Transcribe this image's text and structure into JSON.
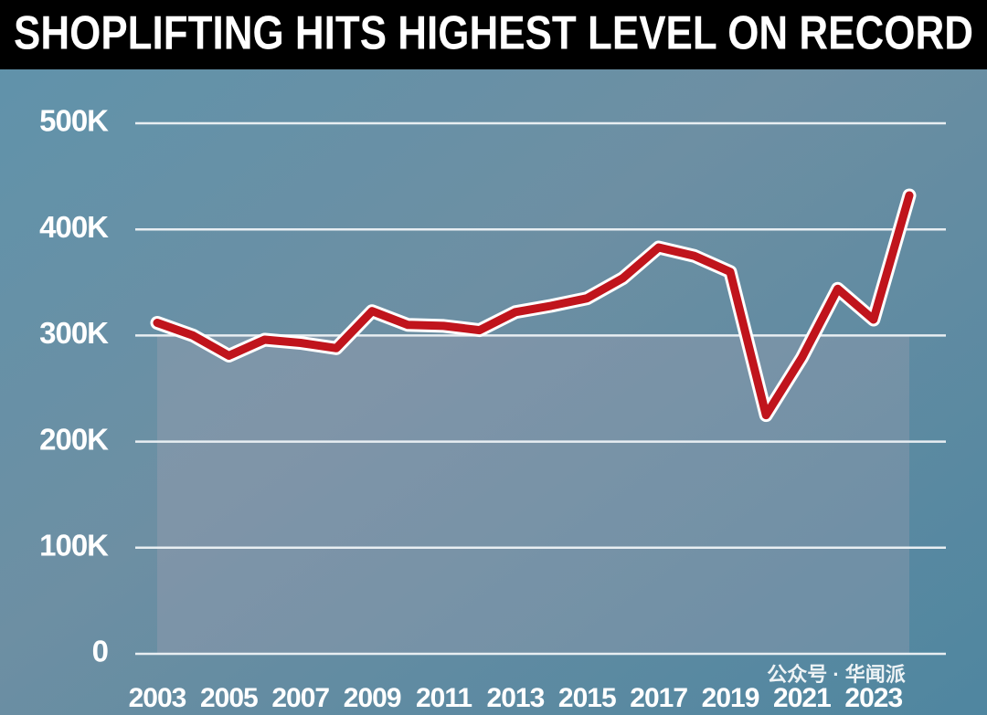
{
  "chart_data": {
    "type": "line",
    "title": "SHOPLIFTING HITS HIGHEST LEVEL ON RECORD",
    "categories": [
      "2003",
      null,
      "2005",
      null,
      "2007",
      null,
      "2009",
      null,
      "2011",
      null,
      "2013",
      null,
      "2015",
      null,
      "2017",
      null,
      "2019",
      null,
      "2021",
      null,
      "2023",
      null
    ],
    "series": [
      {
        "color": "#c0141c",
        "values": [
          312000,
          300000,
          281000,
          296000,
          293000,
          288000,
          323000,
          310000,
          309000,
          305000,
          322000,
          328000,
          335000,
          354000,
          383000,
          375000,
          360000,
          225000,
          279000,
          344000,
          315000,
          432000
        ]
      }
    ],
    "ylim": [
      0,
      500000
    ],
    "yticks": [
      0,
      {
        "value": 100000,
        "label": "100K"
      },
      {
        "value": 200000,
        "label": "200K"
      },
      {
        "value": 300000,
        "label": "300K"
      },
      {
        "value": 400000,
        "label": "400K"
      },
      {
        "value": 500000,
        "label": "500K"
      }
    ],
    "grid": true,
    "watermark": "公众号 · 华闻派"
  }
}
